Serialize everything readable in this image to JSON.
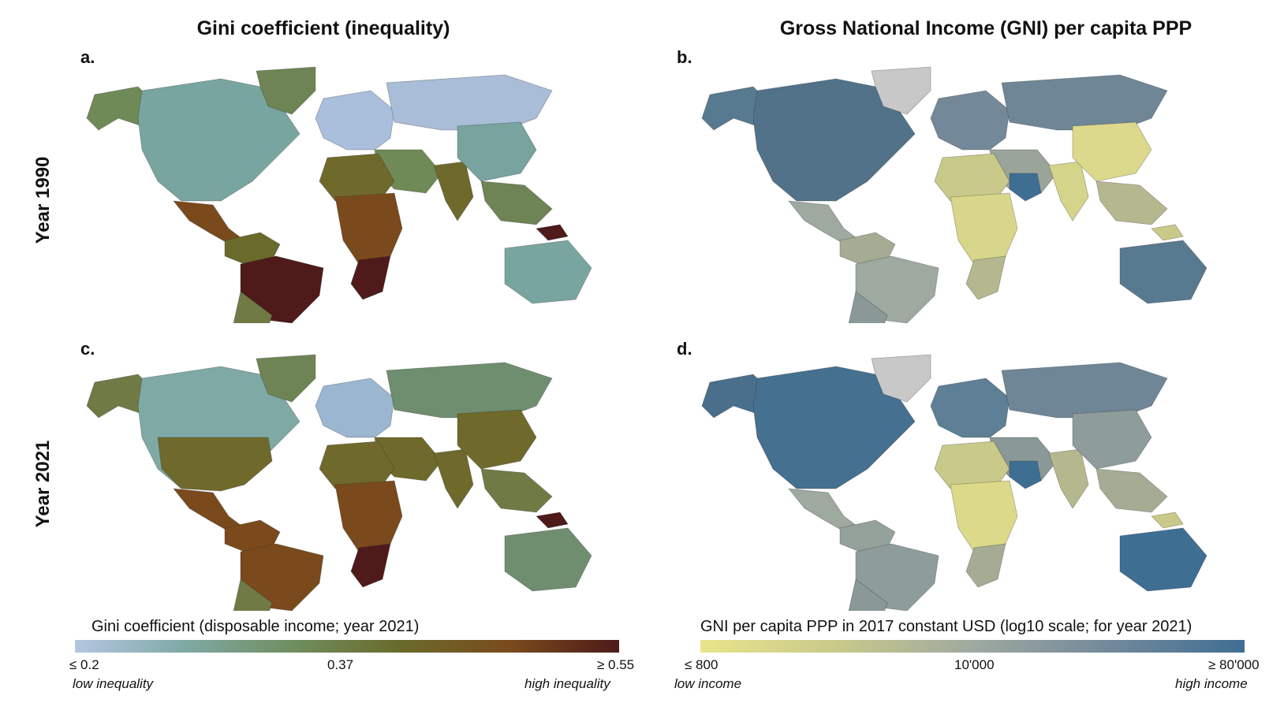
{
  "columns": {
    "left_title": "Gini coefficient (inequality)",
    "right_title": "Gross National Income (GNI) per capita PPP"
  },
  "rows": {
    "top_label": "Year 1990",
    "bottom_label": "Year 2021"
  },
  "panels": {
    "a": "a.",
    "b": "b.",
    "c": "c.",
    "d": "d."
  },
  "legends": {
    "gini": {
      "title": "Gini coefficient (disposable income; year 2021)",
      "min_label": "≤ 0.2",
      "mid_label": "0.37",
      "max_label": "≥ 0.55",
      "low_desc": "low inequality",
      "high_desc": "high inequality",
      "colors": [
        "#b4c6e1",
        "#7fa9a5",
        "#6f8e5f",
        "#6a6a2a",
        "#7a4a1c",
        "#4e1a1a"
      ]
    },
    "gni": {
      "title": "GNI per capita PPP in 2017 constant USD (log10 scale; for year 2021)",
      "min_label": "≤ 800",
      "mid_label": "10'000",
      "max_label": "≥ 80'000",
      "low_desc": "low income",
      "high_desc": "high income",
      "colors": [
        "#e8e48a",
        "#c9c98a",
        "#9ea9a0",
        "#73899a",
        "#3f6e93"
      ]
    }
  },
  "map_colors": {
    "gini_1990": {
      "north_america": "#79a5a0",
      "greenland": "#6f8455",
      "alaska": "#6f8a57",
      "central_america": "#7a4a1c",
      "south_america_north": "#6a6a2a",
      "brazil": "#4e1a1a",
      "south_america_south": "#6f7a45",
      "europe": "#a9bfdc",
      "russia": "#a9bdd8",
      "middle_east": "#6f8a57",
      "africa_north": "#6f6a2c",
      "africa_central": "#7a4a1c",
      "africa_south": "#4e1a1a",
      "south_asia": "#6f6a2c",
      "china": "#78a39e",
      "southeast_asia": "#6f8455",
      "australia": "#79a5a0",
      "png": "#4e1a1a"
    },
    "gini_2021": {
      "north_america": "#7fa9a5",
      "greenland": "#6f8455",
      "alaska": "#6f7a45",
      "usa": "#6f6a2c",
      "central_america": "#7a4a1c",
      "south_america_north": "#7a4a1c",
      "brazil": "#7a4a1c",
      "south_america_south": "#6f7a45",
      "europe": "#9bb6d0",
      "russia": "#6f8e6f",
      "middle_east": "#6f6a2c",
      "africa_north": "#6f6a2c",
      "africa_central": "#7a4a1c",
      "africa_south": "#4e1a1a",
      "south_asia": "#6f6a2c",
      "china": "#6f6a2c",
      "southeast_asia": "#6f7a45",
      "australia": "#6f8e6f",
      "png": "#4e1a1a"
    },
    "gni_1990": {
      "north_america": "#52728a",
      "greenland": "#c8c8c8",
      "alaska": "#587a90",
      "central_america": "#9ea9a0",
      "south_america_north": "#a5ac93",
      "brazil": "#9ea9a0",
      "south_america_south": "#8a9898",
      "europe": "#73899a",
      "russia": "#6f8697",
      "middle_east": "#9aa49a",
      "saudi": "#3f6e93",
      "africa_north": "#c9c98a",
      "africa_central": "#d8d68a",
      "africa_south": "#b5b88e",
      "south_asia": "#d4d48a",
      "china": "#dcd98c",
      "southeast_asia": "#b5b88e",
      "australia": "#587a90",
      "png": "#c9c98a"
    },
    "gni_2021": {
      "north_america": "#46708f",
      "greenland": "#c8c8c8",
      "alaska": "#4a6f8c",
      "central_america": "#9ea9a0",
      "south_america_north": "#95a29c",
      "brazil": "#8e9c9c",
      "south_america_south": "#8a9898",
      "europe": "#5e7f96",
      "russia": "#6f8697",
      "middle_east": "#8a9898",
      "saudi": "#3f6e93",
      "africa_north": "#c9c98a",
      "africa_central": "#dcda88",
      "africa_south": "#a5ac93",
      "south_asia": "#b5b88e",
      "china": "#8e9c9c",
      "southeast_asia": "#a5ac93",
      "australia": "#3f6e93",
      "png": "#c9c98a"
    }
  }
}
